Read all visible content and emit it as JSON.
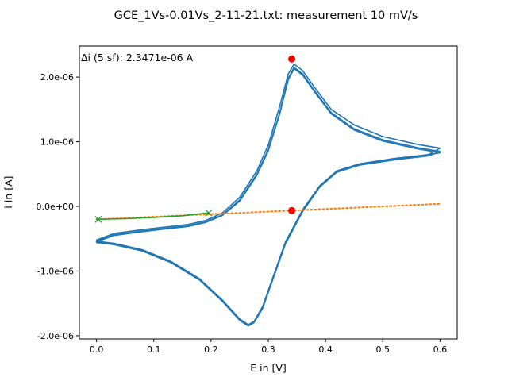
{
  "chart_data": {
    "type": "line",
    "title": "GCE_1Vs-0.01Vs_2-11-21.txt: measurement 10 mV/s",
    "xlabel": "E in [V]",
    "ylabel": "i in [A]",
    "xlim": [
      -0.03,
      0.63
    ],
    "ylim": [
      -2.05e-06,
      2.48e-06
    ],
    "x_ticks": [
      0.0,
      0.1,
      0.2,
      0.3,
      0.4,
      0.5,
      0.6
    ],
    "x_tick_labels": [
      "0.0",
      "0.1",
      "0.2",
      "0.3",
      "0.4",
      "0.5",
      "0.6"
    ],
    "y_ticks": [
      -2e-06,
      -1e-06,
      0,
      1e-06,
      2e-06
    ],
    "y_tick_labels": [
      "-2.0e-06",
      "-1.0e-06",
      "0.0e+00",
      "1.0e-06",
      "2.0e-06"
    ],
    "grid": false,
    "annotation": "Δi (5 sf): 2.3471e-06 A",
    "colors": {
      "cv": "#1f77b4",
      "baseline": "#ff7f0e",
      "fit": "#2ca02c",
      "peak": "#ff0000"
    },
    "series": [
      {
        "id": "cv-cycle-1",
        "style": "solid",
        "points": [
          [
            0.0,
            -5.2e-07
          ],
          [
            0.03,
            -4.2e-07
          ],
          [
            0.08,
            -3.6e-07
          ],
          [
            0.12,
            -3.2e-07
          ],
          [
            0.16,
            -2.8e-07
          ],
          [
            0.19,
            -2.2e-07
          ],
          [
            0.22,
            -1e-07
          ],
          [
            0.25,
            1.4e-07
          ],
          [
            0.28,
            5.5e-07
          ],
          [
            0.3,
            9.5e-07
          ],
          [
            0.32,
            1.55e-06
          ],
          [
            0.335,
            2.05e-06
          ],
          [
            0.345,
            2.2e-06
          ],
          [
            0.36,
            2.1e-06
          ],
          [
            0.38,
            1.85e-06
          ],
          [
            0.41,
            1.5e-06
          ],
          [
            0.45,
            1.26e-06
          ],
          [
            0.5,
            1.08e-06
          ],
          [
            0.56,
            9.6e-07
          ],
          [
            0.6,
            9e-07
          ],
          [
            0.58,
            8e-07
          ],
          [
            0.52,
            7.4e-07
          ],
          [
            0.46,
            6.6e-07
          ],
          [
            0.42,
            5.5e-07
          ],
          [
            0.39,
            3.2e-07
          ],
          [
            0.36,
            -5e-08
          ],
          [
            0.33,
            -5.5e-07
          ],
          [
            0.31,
            -1.05e-06
          ],
          [
            0.29,
            -1.55e-06
          ],
          [
            0.275,
            -1.78e-06
          ],
          [
            0.265,
            -1.83e-06
          ],
          [
            0.25,
            -1.74e-06
          ],
          [
            0.22,
            -1.45e-06
          ],
          [
            0.18,
            -1.12e-06
          ],
          [
            0.13,
            -8.5e-07
          ],
          [
            0.08,
            -6.7e-07
          ],
          [
            0.03,
            -5.7e-07
          ],
          [
            0.0,
            -5.4e-07
          ]
        ]
      },
      {
        "id": "cv-cycle-2",
        "style": "solid",
        "points": [
          [
            0.0,
            -5.4e-07
          ],
          [
            0.03,
            -4.4e-07
          ],
          [
            0.08,
            -3.8e-07
          ],
          [
            0.12,
            -3.4e-07
          ],
          [
            0.16,
            -3e-07
          ],
          [
            0.19,
            -2.4e-07
          ],
          [
            0.22,
            -1.3e-07
          ],
          [
            0.25,
            1e-07
          ],
          [
            0.28,
            5e-07
          ],
          [
            0.3,
            8.8e-07
          ],
          [
            0.32,
            1.45e-06
          ],
          [
            0.335,
            1.98e-06
          ],
          [
            0.345,
            2.15e-06
          ],
          [
            0.36,
            2.05e-06
          ],
          [
            0.38,
            1.8e-06
          ],
          [
            0.41,
            1.45e-06
          ],
          [
            0.45,
            1.2e-06
          ],
          [
            0.5,
            1.03e-06
          ],
          [
            0.56,
            9.1e-07
          ],
          [
            0.6,
            8.5e-07
          ],
          [
            0.58,
            7.8e-07
          ],
          [
            0.52,
            7.2e-07
          ],
          [
            0.46,
            6.4e-07
          ],
          [
            0.42,
            5.3e-07
          ],
          [
            0.39,
            3e-07
          ],
          [
            0.36,
            -8e-08
          ],
          [
            0.33,
            -5.8e-07
          ],
          [
            0.31,
            -1.08e-06
          ],
          [
            0.29,
            -1.58e-06
          ],
          [
            0.275,
            -1.8e-06
          ],
          [
            0.265,
            -1.85e-06
          ],
          [
            0.25,
            -1.76e-06
          ],
          [
            0.22,
            -1.47e-06
          ],
          [
            0.18,
            -1.14e-06
          ],
          [
            0.13,
            -8.7e-07
          ],
          [
            0.08,
            -6.9e-07
          ],
          [
            0.03,
            -5.9e-07
          ],
          [
            0.0,
            -5.6e-07
          ]
        ]
      },
      {
        "id": "cv-cycle-3",
        "style": "solid",
        "points": [
          [
            0.0,
            -5.5e-07
          ],
          [
            0.03,
            -4.5e-07
          ],
          [
            0.08,
            -3.9e-07
          ],
          [
            0.12,
            -3.5e-07
          ],
          [
            0.16,
            -3.1e-07
          ],
          [
            0.19,
            -2.5e-07
          ],
          [
            0.22,
            -1.4e-07
          ],
          [
            0.25,
            8e-08
          ],
          [
            0.28,
            4.8e-07
          ],
          [
            0.3,
            8.6e-07
          ],
          [
            0.32,
            1.43e-06
          ],
          [
            0.335,
            1.96e-06
          ],
          [
            0.345,
            2.13e-06
          ],
          [
            0.36,
            2.03e-06
          ],
          [
            0.38,
            1.78e-06
          ],
          [
            0.41,
            1.43e-06
          ],
          [
            0.45,
            1.18e-06
          ],
          [
            0.5,
            1.01e-06
          ],
          [
            0.56,
            8.9e-07
          ],
          [
            0.6,
            8.3e-07
          ],
          [
            0.58,
            8e-07
          ],
          [
            0.52,
            7.3e-07
          ],
          [
            0.46,
            6.5e-07
          ],
          [
            0.42,
            5.4e-07
          ],
          [
            0.39,
            3.1e-07
          ],
          [
            0.36,
            -7e-08
          ],
          [
            0.33,
            -5.7e-07
          ],
          [
            0.31,
            -1.07e-06
          ],
          [
            0.29,
            -1.57e-06
          ],
          [
            0.275,
            -1.79e-06
          ],
          [
            0.265,
            -1.84e-06
          ],
          [
            0.25,
            -1.75e-06
          ],
          [
            0.22,
            -1.46e-06
          ],
          [
            0.18,
            -1.13e-06
          ],
          [
            0.13,
            -8.6e-07
          ],
          [
            0.08,
            -6.8e-07
          ],
          [
            0.03,
            -5.8e-07
          ],
          [
            0.0,
            -5.5e-07
          ]
        ]
      },
      {
        "id": "baseline",
        "style": "dotted",
        "points": [
          [
            0.0,
            -2e-07
          ],
          [
            0.6,
            4e-08
          ]
        ]
      },
      {
        "id": "fit-segment",
        "style": "solid-thin",
        "points": [
          [
            0.0,
            -2e-07
          ],
          [
            0.05,
            -1.9e-07
          ],
          [
            0.1,
            -1.7e-07
          ],
          [
            0.15,
            -1.45e-07
          ],
          [
            0.195,
            -1e-07
          ]
        ]
      }
    ],
    "markers": [
      {
        "id": "fit-start",
        "shape": "x",
        "x": 0.003,
        "y": -2e-07
      },
      {
        "id": "fit-end",
        "shape": "x",
        "x": 0.196,
        "y": -1e-07
      },
      {
        "id": "peak-max",
        "shape": "dot",
        "x": 0.341,
        "y": 2.28e-06
      },
      {
        "id": "peak-base",
        "shape": "dot",
        "x": 0.341,
        "y": -6.5e-08
      }
    ]
  }
}
